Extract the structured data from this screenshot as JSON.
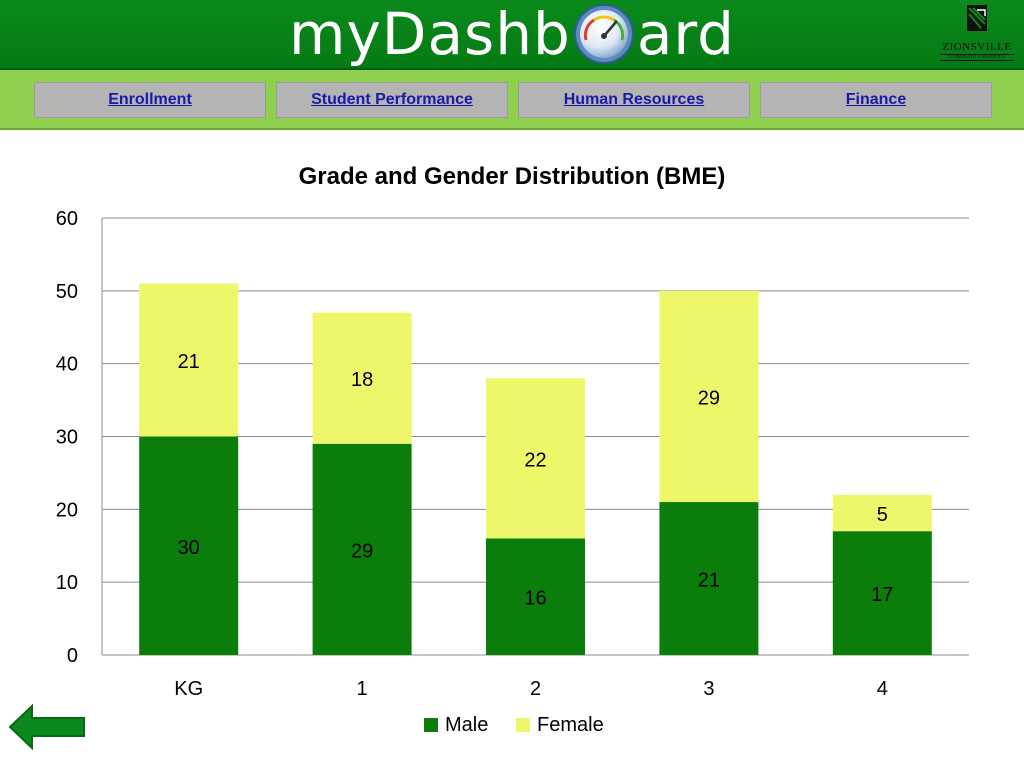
{
  "header": {
    "logo_left": "myDashb",
    "logo_right": "ard",
    "school_name": "ZIONSVILLE",
    "school_sub": "COMMUNITY SCHOOLS"
  },
  "nav": {
    "items": [
      "Enrollment",
      "Student Performance",
      "Human Resources",
      "Finance"
    ]
  },
  "colors": {
    "male": "#0a7d0a",
    "female": "#eef76a",
    "header_green": "#0a8a1c",
    "nav_green": "#8fd14f"
  },
  "chart_data": {
    "type": "bar",
    "stacked": true,
    "title": "Grade and Gender Distribution (BME)",
    "categories": [
      "KG",
      "1",
      "2",
      "3",
      "4"
    ],
    "series": [
      {
        "name": "Male",
        "values": [
          30,
          29,
          16,
          21,
          17
        ]
      },
      {
        "name": "Female",
        "values": [
          21,
          18,
          22,
          29,
          5
        ]
      }
    ],
    "ylim": [
      0,
      60
    ],
    "yticks": [
      0,
      10,
      20,
      30,
      40,
      50,
      60
    ],
    "grid": true,
    "legend": "bottom"
  }
}
